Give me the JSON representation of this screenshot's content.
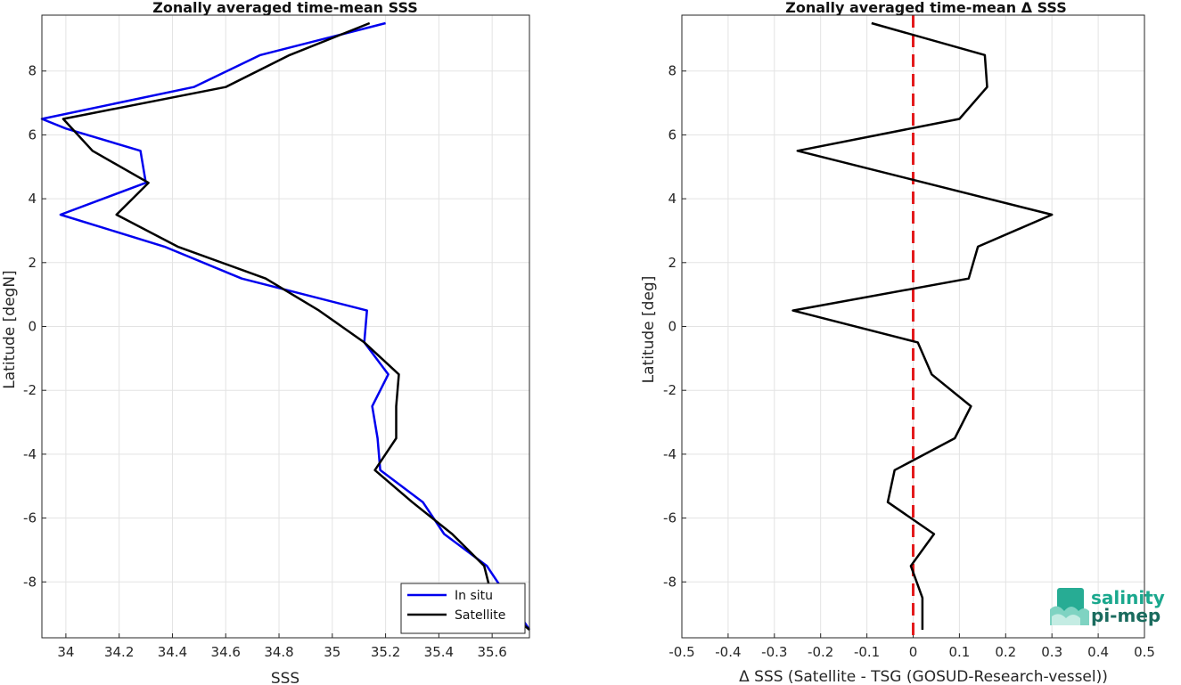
{
  "chart_data": [
    {
      "type": "line",
      "title": "Zonally averaged time-mean SSS",
      "xlabel": "SSS",
      "ylabel": "Latitude [degN]",
      "xlim": [
        33.91,
        35.74
      ],
      "ylim": [
        -9.75,
        9.75
      ],
      "xticks": [
        "34",
        "34.2",
        "34.4",
        "34.6",
        "34.8",
        "35",
        "35.2",
        "35.4",
        "35.6"
      ],
      "xtick_values": [
        34,
        34.2,
        34.4,
        34.6,
        34.8,
        35,
        35.2,
        35.4,
        35.6
      ],
      "yticks": [
        "-8",
        "-6",
        "-4",
        "-2",
        "0",
        "2",
        "4",
        "6",
        "8"
      ],
      "ytick_values": [
        -8,
        -6,
        -4,
        -2,
        0,
        2,
        4,
        6,
        8
      ],
      "grid": true,
      "legend": "bottom-right",
      "series": [
        {
          "name": "In situ",
          "color": "#0000ee",
          "points": [
            [
              35.74,
              -9.5
            ],
            [
              35.58,
              -7.5
            ],
            [
              35.42,
              -6.5
            ],
            [
              35.34,
              -5.5
            ],
            [
              35.18,
              -4.5
            ],
            [
              35.17,
              -3.5
            ],
            [
              35.15,
              -2.5
            ],
            [
              35.21,
              -1.5
            ],
            [
              35.12,
              -0.5
            ],
            [
              35.13,
              0.5
            ],
            [
              34.66,
              1.5
            ],
            [
              34.37,
              2.5
            ],
            [
              33.98,
              3.5
            ],
            [
              34.3,
              4.5
            ],
            [
              34.28,
              5.5
            ],
            [
              34.0,
              6.2
            ],
            [
              33.91,
              6.5
            ],
            [
              34.48,
              7.5
            ],
            [
              34.73,
              8.5
            ],
            [
              35.2,
              9.5
            ]
          ]
        },
        {
          "name": "Satellite",
          "color": "#000000",
          "points": [
            [
              35.74,
              -9.5
            ],
            [
              35.6,
              -8.5
            ],
            [
              35.57,
              -7.5
            ],
            [
              35.45,
              -6.5
            ],
            [
              35.3,
              -5.5
            ],
            [
              35.16,
              -4.5
            ],
            [
              35.24,
              -3.5
            ],
            [
              35.24,
              -2.5
            ],
            [
              35.25,
              -1.5
            ],
            [
              35.12,
              -0.5
            ],
            [
              34.95,
              0.5
            ],
            [
              34.75,
              1.5
            ],
            [
              34.42,
              2.5
            ],
            [
              34.19,
              3.5
            ],
            [
              34.31,
              4.5
            ],
            [
              34.1,
              5.5
            ],
            [
              33.99,
              6.5
            ],
            [
              34.6,
              7.5
            ],
            [
              34.84,
              8.5
            ],
            [
              35.14,
              9.5
            ]
          ]
        }
      ]
    },
    {
      "type": "line",
      "title": "Zonally averaged time-mean Δ SSS",
      "xlabel": "Δ SSS (Satellite - TSG (GOSUD-Research-vessel))",
      "ylabel": "Latitude [deg]",
      "xlim": [
        -0.5,
        0.5
      ],
      "ylim": [
        -9.75,
        9.75
      ],
      "xticks": [
        "-0.5",
        "-0.4",
        "-0.3",
        "-0.2",
        "-0.1",
        "0",
        "0.1",
        "0.2",
        "0.3",
        "0.4",
        "0.5"
      ],
      "xtick_values": [
        -0.5,
        -0.4,
        -0.3,
        -0.2,
        -0.1,
        0,
        0.1,
        0.2,
        0.3,
        0.4,
        0.5
      ],
      "yticks": [
        "-8",
        "-6",
        "-4",
        "-2",
        "0",
        "2",
        "4",
        "6",
        "8"
      ],
      "ytick_values": [
        -8,
        -6,
        -4,
        -2,
        0,
        2,
        4,
        6,
        8
      ],
      "grid": true,
      "zero_line": {
        "x": 0,
        "color": "#e31a1c",
        "style": "dashed"
      },
      "series": [
        {
          "color": "#000000",
          "points": [
            [
              0.02,
              -9.5
            ],
            [
              0.02,
              -8.5
            ],
            [
              -0.005,
              -7.5
            ],
            [
              0.045,
              -6.5
            ],
            [
              -0.055,
              -5.5
            ],
            [
              -0.04,
              -4.5
            ],
            [
              0.09,
              -3.5
            ],
            [
              0.125,
              -2.5
            ],
            [
              0.04,
              -1.5
            ],
            [
              0.01,
              -0.5
            ],
            [
              -0.26,
              0.5
            ],
            [
              0.12,
              1.5
            ],
            [
              0.14,
              2.5
            ],
            [
              0.3,
              3.5
            ],
            [
              -0.25,
              5.5
            ],
            [
              0.1,
              6.5
            ],
            [
              0.16,
              7.5
            ],
            [
              0.155,
              8.5
            ],
            [
              -0.09,
              9.5
            ]
          ]
        }
      ]
    }
  ],
  "legend": {
    "items": [
      {
        "label": "In situ",
        "color": "#0000ee"
      },
      {
        "label": "Satellite",
        "color": "#000000"
      }
    ]
  },
  "logo": {
    "line1": "salinity",
    "line2": "pi-mep",
    "color": "#1ba88e"
  }
}
